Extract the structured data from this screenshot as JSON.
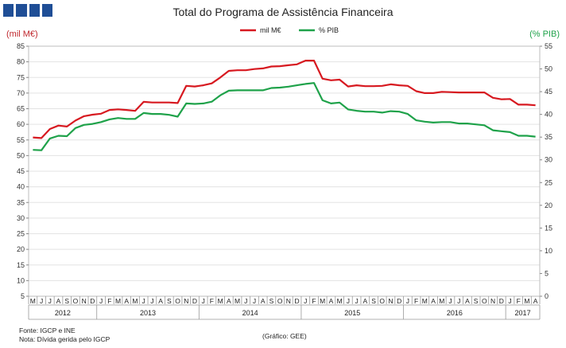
{
  "logo": "logo",
  "chart_data": {
    "type": "line",
    "title": "Total do Programa de Assistência Financeira",
    "ylabel": "(mil M€)",
    "y2label": "(% PIB)",
    "ylim": [
      5,
      85
    ],
    "y2lim": [
      0,
      55
    ],
    "yticks": [
      5,
      10,
      15,
      20,
      25,
      30,
      35,
      40,
      45,
      50,
      55,
      60,
      65,
      70,
      75,
      80,
      85
    ],
    "y2ticks": [
      0,
      5,
      10,
      15,
      20,
      25,
      30,
      35,
      40,
      45,
      50,
      55
    ],
    "grid": true,
    "legend_position": "top-center",
    "month_labels": [
      "M",
      "J",
      "J",
      "A",
      "S",
      "O",
      "N",
      "D",
      "J",
      "F",
      "M",
      "A",
      "M",
      "J",
      "J",
      "A",
      "S",
      "O",
      "N",
      "D",
      "J",
      "F",
      "M",
      "A",
      "M",
      "J",
      "J",
      "A",
      "S",
      "O",
      "N",
      "D",
      "J",
      "F",
      "M",
      "A",
      "M",
      "J",
      "J",
      "A",
      "S",
      "O",
      "N",
      "D",
      "J",
      "F",
      "M",
      "A",
      "M",
      "J",
      "J",
      "A",
      "S",
      "O",
      "N",
      "D",
      "J",
      "F",
      "M",
      "A"
    ],
    "year_labels": [
      {
        "label": "2012",
        "from": 0,
        "to": 7
      },
      {
        "label": "2013",
        "from": 8,
        "to": 19
      },
      {
        "label": "2014",
        "from": 20,
        "to": 31
      },
      {
        "label": "2015",
        "from": 32,
        "to": 43
      },
      {
        "label": "2016",
        "from": 44,
        "to": 55
      },
      {
        "label": "2017",
        "from": 56,
        "to": 59
      }
    ],
    "series": [
      {
        "name": "mil M€",
        "color": "#d71920",
        "axis": "left",
        "values": [
          55.8,
          55.6,
          58.5,
          59.6,
          59.3,
          61.2,
          62.6,
          63.1,
          63.4,
          64.6,
          64.8,
          64.6,
          64.3,
          67.2,
          67.0,
          67.0,
          67.0,
          66.8,
          72.3,
          72.1,
          72.5,
          73.1,
          75.0,
          77.1,
          77.3,
          77.3,
          77.7,
          77.9,
          78.5,
          78.6,
          78.9,
          79.2,
          80.4,
          80.4,
          74.6,
          74.1,
          74.3,
          72.1,
          72.5,
          72.2,
          72.2,
          72.3,
          72.8,
          72.5,
          72.3,
          70.6,
          70.0,
          70.0,
          70.4,
          70.3,
          70.2,
          70.2,
          70.2,
          70.2,
          68.5,
          68.0,
          68.1,
          66.3,
          66.3,
          66.1
        ]
      },
      {
        "name": "% PIB",
        "color": "#1fa24a",
        "axis": "right",
        "values": [
          32.2,
          32.1,
          34.7,
          35.3,
          35.2,
          37.0,
          37.7,
          37.9,
          38.3,
          38.9,
          39.2,
          39.0,
          39.0,
          40.3,
          40.1,
          40.1,
          39.9,
          39.5,
          42.4,
          42.3,
          42.4,
          42.8,
          44.2,
          45.2,
          45.3,
          45.3,
          45.3,
          45.3,
          45.8,
          45.9,
          46.1,
          46.4,
          46.7,
          46.9,
          43.1,
          42.4,
          42.6,
          41.1,
          40.8,
          40.6,
          40.6,
          40.4,
          40.7,
          40.6,
          40.1,
          38.7,
          38.4,
          38.2,
          38.3,
          38.3,
          38.0,
          38.0,
          37.8,
          37.6,
          36.5,
          36.3,
          36.1,
          35.3,
          35.3,
          35.1
        ]
      }
    ]
  },
  "footer": {
    "source": "Fonte: IGCP e INE",
    "note": "Nota: Dívida gerida pelo IGCP",
    "credit": "(Gráfico: GEE)"
  }
}
